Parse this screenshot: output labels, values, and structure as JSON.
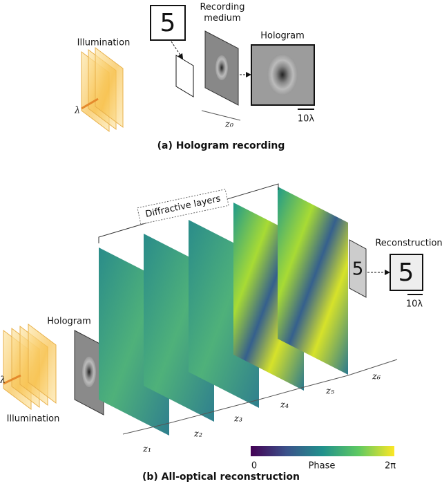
{
  "panel_a": {
    "illumination": "Illumination",
    "wavelength": "λ",
    "recording_medium": "Recording medium",
    "hologram": "Hologram",
    "scale_bar": "10λ",
    "distance": "z₀",
    "caption": "(a) Hologram recording"
  },
  "panel_b": {
    "diffractive_layers": "Diffractive layers",
    "hologram": "Hologram",
    "illumination": "Illumination",
    "wavelength": "λ",
    "reconstruction": "Reconstruction",
    "scale_bar": "10λ",
    "distances": [
      "z₁",
      "z₂",
      "z₃",
      "z₄",
      "z₅",
      "z₆"
    ],
    "colorbar": {
      "min": "0",
      "label": "Phase",
      "max": "2π"
    },
    "caption": "(b) All-optical reconstruction"
  }
}
